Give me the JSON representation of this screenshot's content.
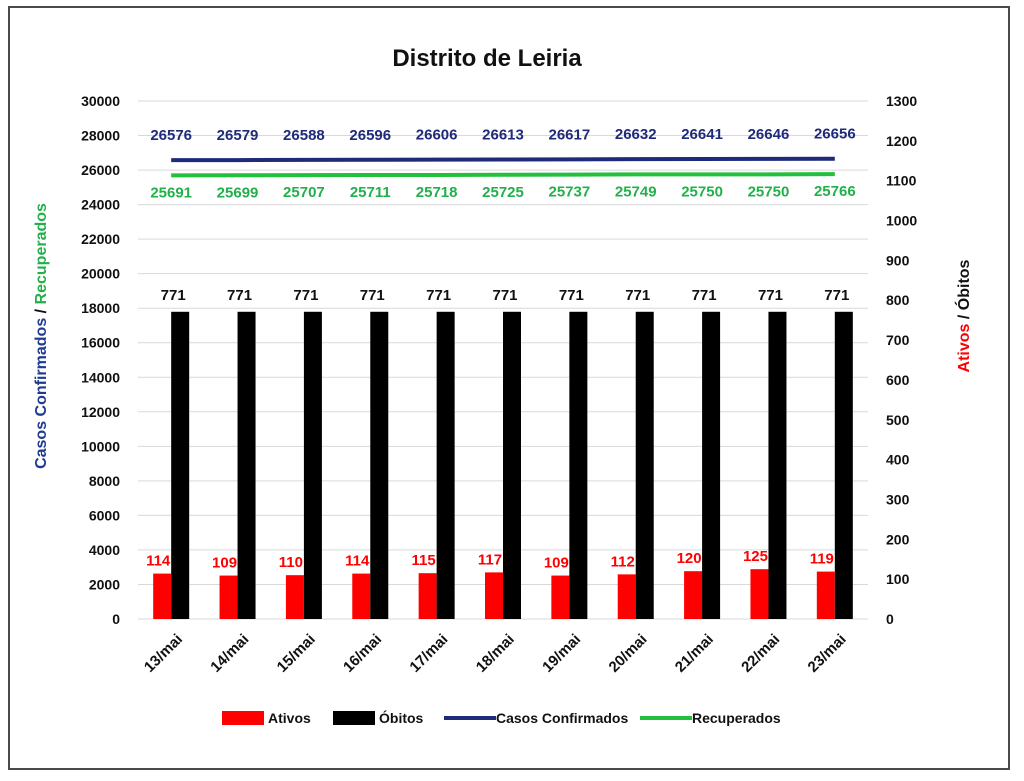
{
  "chart_data": {
    "type": "bar",
    "title": "Distrito de Leiria",
    "categories": [
      "13/mai",
      "14/mai",
      "15/mai",
      "16/mai",
      "17/mai",
      "18/mai",
      "19/mai",
      "20/mai",
      "21/mai",
      "22/mai",
      "23/mai"
    ],
    "y_left": {
      "label_part1": "Casos Confirmados",
      "label_sep": " / ",
      "label_part2": "Recuperados",
      "label_part1_color": "#1f3a93",
      "label_part2_color": "#22b04b",
      "ylim": [
        0,
        30000
      ],
      "ticks": [
        "0",
        "2000",
        "4000",
        "6000",
        "8000",
        "10000",
        "12000",
        "14000",
        "16000",
        "18000",
        "20000",
        "22000",
        "24000",
        "26000",
        "28000",
        "30000"
      ]
    },
    "y_right": {
      "label_part1": "Ativos",
      "label_sep": " / ",
      "label_part2": "Óbitos",
      "label_part1_color": "#ff0000",
      "label_part2_color": "#111111",
      "ylim": [
        0,
        1300
      ],
      "ticks": [
        "0",
        "100",
        "200",
        "300",
        "400",
        "500",
        "600",
        "700",
        "800",
        "900",
        "1000",
        "1100",
        "1200",
        "1300"
      ]
    },
    "series": [
      {
        "name": "Ativos",
        "type": "bar",
        "axis": "right",
        "color": "#ff0000",
        "label_color": "#ff0000",
        "values": [
          114,
          109,
          110,
          114,
          115,
          117,
          109,
          112,
          120,
          125,
          119
        ]
      },
      {
        "name": "Óbitos",
        "type": "bar",
        "axis": "right",
        "color": "#000000",
        "label_color": "#111111",
        "values": [
          771,
          771,
          771,
          771,
          771,
          771,
          771,
          771,
          771,
          771,
          771
        ]
      },
      {
        "name": "Casos Confirmados",
        "type": "line",
        "axis": "left",
        "color": "#1f2a7a",
        "label_color": "#1f2a7a",
        "values": [
          26576,
          26579,
          26588,
          26596,
          26606,
          26613,
          26617,
          26632,
          26641,
          26646,
          26656
        ]
      },
      {
        "name": "Recuperados",
        "type": "line",
        "axis": "left",
        "color": "#22c03c",
        "label_color": "#22b04b",
        "values": [
          25691,
          25699,
          25707,
          25711,
          25718,
          25725,
          25737,
          25749,
          25750,
          25750,
          25766
        ]
      }
    ],
    "grid": true,
    "legend": "bottom"
  }
}
